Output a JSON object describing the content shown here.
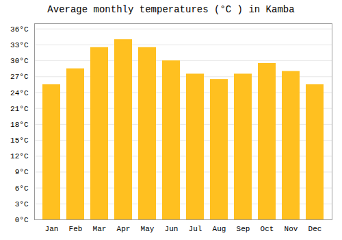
{
  "chart_data": {
    "type": "bar",
    "title": "Average monthly temperatures (°C ) in Kamba",
    "categories": [
      "Jan",
      "Feb",
      "Mar",
      "Apr",
      "May",
      "Jun",
      "Jul",
      "Aug",
      "Sep",
      "Oct",
      "Nov",
      "Dec"
    ],
    "values": [
      25.5,
      28.5,
      32.5,
      34.0,
      32.5,
      30.0,
      27.5,
      26.5,
      27.5,
      29.5,
      28.0,
      25.5
    ],
    "color": "#FFC020",
    "ylim": [
      0,
      37
    ],
    "yticks": [
      {
        "value": 0,
        "label": "0°C"
      },
      {
        "value": 3,
        "label": "3°C"
      },
      {
        "value": 6,
        "label": "6°C"
      },
      {
        "value": 9,
        "label": "9°C"
      },
      {
        "value": 12,
        "label": "12°C"
      },
      {
        "value": 15,
        "label": "15°C"
      },
      {
        "value": 18,
        "label": "18°C"
      },
      {
        "value": 21,
        "label": "21°C"
      },
      {
        "value": 24,
        "label": "24°C"
      },
      {
        "value": 27,
        "label": "27°C"
      },
      {
        "value": 30,
        "label": "30°C"
      },
      {
        "value": 33,
        "label": "33°C"
      },
      {
        "value": 36,
        "label": "36°C"
      }
    ],
    "grid": true
  }
}
